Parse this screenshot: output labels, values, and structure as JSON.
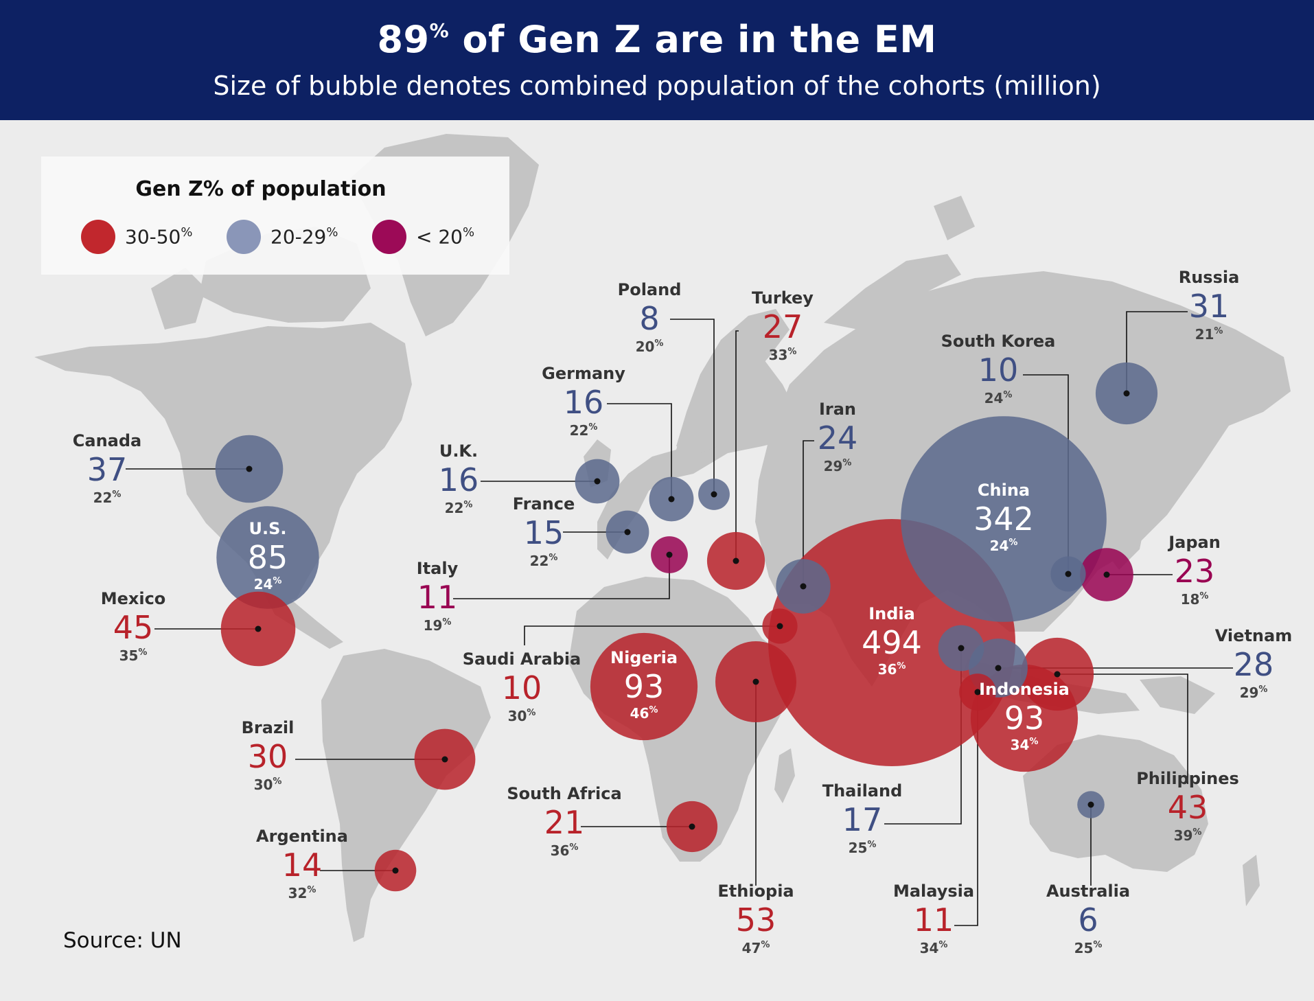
{
  "header": {
    "title_pct": "89",
    "title_pct_sign": "%",
    "title_rest": " of Gen Z are in the EM",
    "subtitle": "Size of bubble denotes combined population of the cohorts (million)"
  },
  "legend": {
    "title": "Gen Z% of population",
    "items": [
      {
        "label": "30-50",
        "sign": "%",
        "color": "#c1272d"
      },
      {
        "label": "20-29",
        "sign": "%",
        "color": "#8a96b8"
      },
      {
        "label": "< 20",
        "sign": "%",
        "color": "#9c0a57"
      }
    ]
  },
  "colors": {
    "high": "#b8222a",
    "mid": "#5c6a8d",
    "low": "#990452",
    "header_bg": "#0d2163",
    "land": "#c4c4c4",
    "sea": "#ececec"
  },
  "source": "Source: UN",
  "countries": [
    {
      "name": "Canada",
      "value": "37",
      "pct": "22",
      "group": "mid"
    },
    {
      "name": "U.S.",
      "value": "85",
      "pct": "24",
      "group": "mid"
    },
    {
      "name": "Mexico",
      "value": "45",
      "pct": "35",
      "group": "high"
    },
    {
      "name": "Brazil",
      "value": "30",
      "pct": "30",
      "group": "high"
    },
    {
      "name": "Argentina",
      "value": "14",
      "pct": "32",
      "group": "high"
    },
    {
      "name": "U.K.",
      "value": "16",
      "pct": "22",
      "group": "mid"
    },
    {
      "name": "France",
      "value": "15",
      "pct": "22",
      "group": "mid"
    },
    {
      "name": "Germany",
      "value": "16",
      "pct": "22",
      "group": "mid"
    },
    {
      "name": "Poland",
      "value": "8",
      "pct": "20",
      "group": "mid"
    },
    {
      "name": "Italy",
      "value": "11",
      "pct": "19",
      "group": "low"
    },
    {
      "name": "Turkey",
      "value": "27",
      "pct": "33",
      "group": "high"
    },
    {
      "name": "Iran",
      "value": "24",
      "pct": "29",
      "group": "mid"
    },
    {
      "name": "Saudi Arabia",
      "value": "10",
      "pct": "30",
      "group": "high"
    },
    {
      "name": "Nigeria",
      "value": "93",
      "pct": "46",
      "group": "high"
    },
    {
      "name": "Ethiopia",
      "value": "53",
      "pct": "47",
      "group": "high"
    },
    {
      "name": "South Africa",
      "value": "21",
      "pct": "36",
      "group": "high"
    },
    {
      "name": "India",
      "value": "494",
      "pct": "36",
      "group": "high"
    },
    {
      "name": "China",
      "value": "342",
      "pct": "24",
      "group": "mid"
    },
    {
      "name": "Russia",
      "value": "31",
      "pct": "21",
      "group": "mid"
    },
    {
      "name": "South Korea",
      "value": "10",
      "pct": "24",
      "group": "mid"
    },
    {
      "name": "Japan",
      "value": "23",
      "pct": "18",
      "group": "low"
    },
    {
      "name": "Vietnam",
      "value": "28",
      "pct": "29",
      "group": "mid"
    },
    {
      "name": "Philippines",
      "value": "43",
      "pct": "39",
      "group": "high"
    },
    {
      "name": "Thailand",
      "value": "17",
      "pct": "25",
      "group": "mid"
    },
    {
      "name": "Malaysia",
      "value": "11",
      "pct": "34",
      "group": "high"
    },
    {
      "name": "Indonesia",
      "value": "93",
      "pct": "34",
      "group": "high"
    },
    {
      "name": "Australia",
      "value": "6",
      "pct": "25",
      "group": "mid"
    }
  ]
}
